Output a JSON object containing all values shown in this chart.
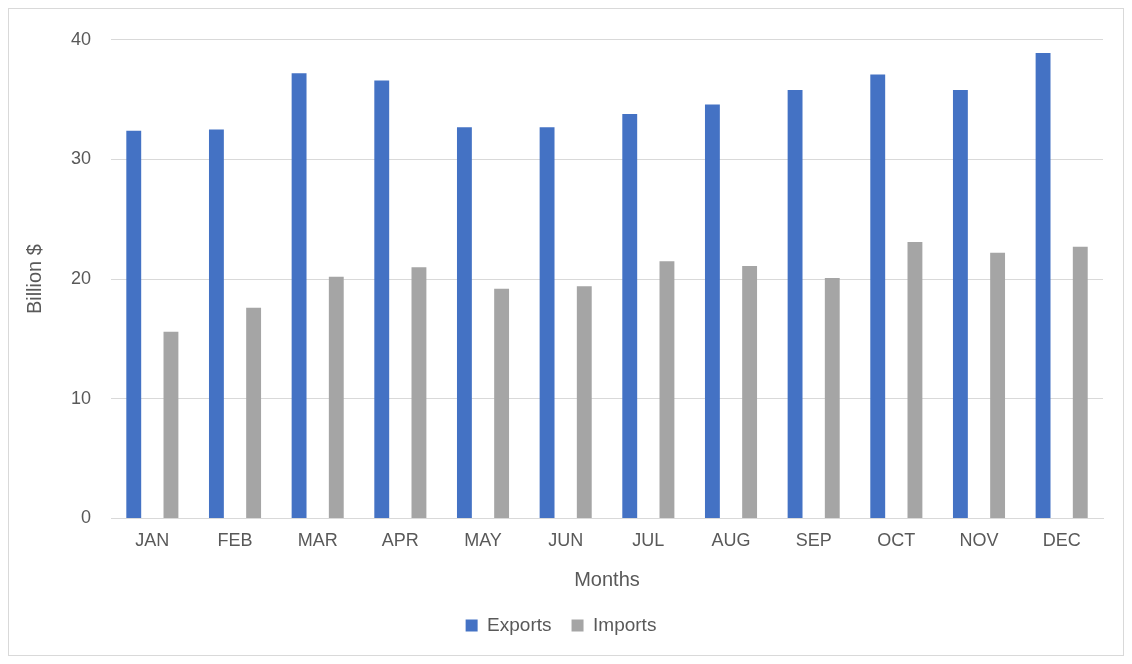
{
  "chart_data": {
    "type": "bar",
    "xlabel": "Months",
    "ylabel": "Billion $",
    "categories": [
      "JAN",
      "FEB",
      "MAR",
      "APR",
      "MAY",
      "JUN",
      "JUL",
      "AUG",
      "SEP",
      "OCT",
      "NOV",
      "DEC"
    ],
    "series": [
      {
        "name": "Exports",
        "color": "#4472c4",
        "values": [
          32.4,
          32.5,
          37.2,
          36.6,
          32.7,
          32.7,
          33.8,
          34.6,
          35.8,
          37.1,
          35.8,
          38.9
        ]
      },
      {
        "name": "Imports",
        "color": "#a5a5a5",
        "values": [
          15.6,
          17.6,
          20.2,
          21.0,
          19.2,
          19.4,
          21.5,
          21.1,
          20.1,
          23.1,
          22.2,
          22.7
        ]
      }
    ],
    "ylim": [
      0,
      40
    ],
    "yticks": [
      0,
      10,
      20,
      30,
      40
    ],
    "grid": "y",
    "legend": "bottom"
  }
}
